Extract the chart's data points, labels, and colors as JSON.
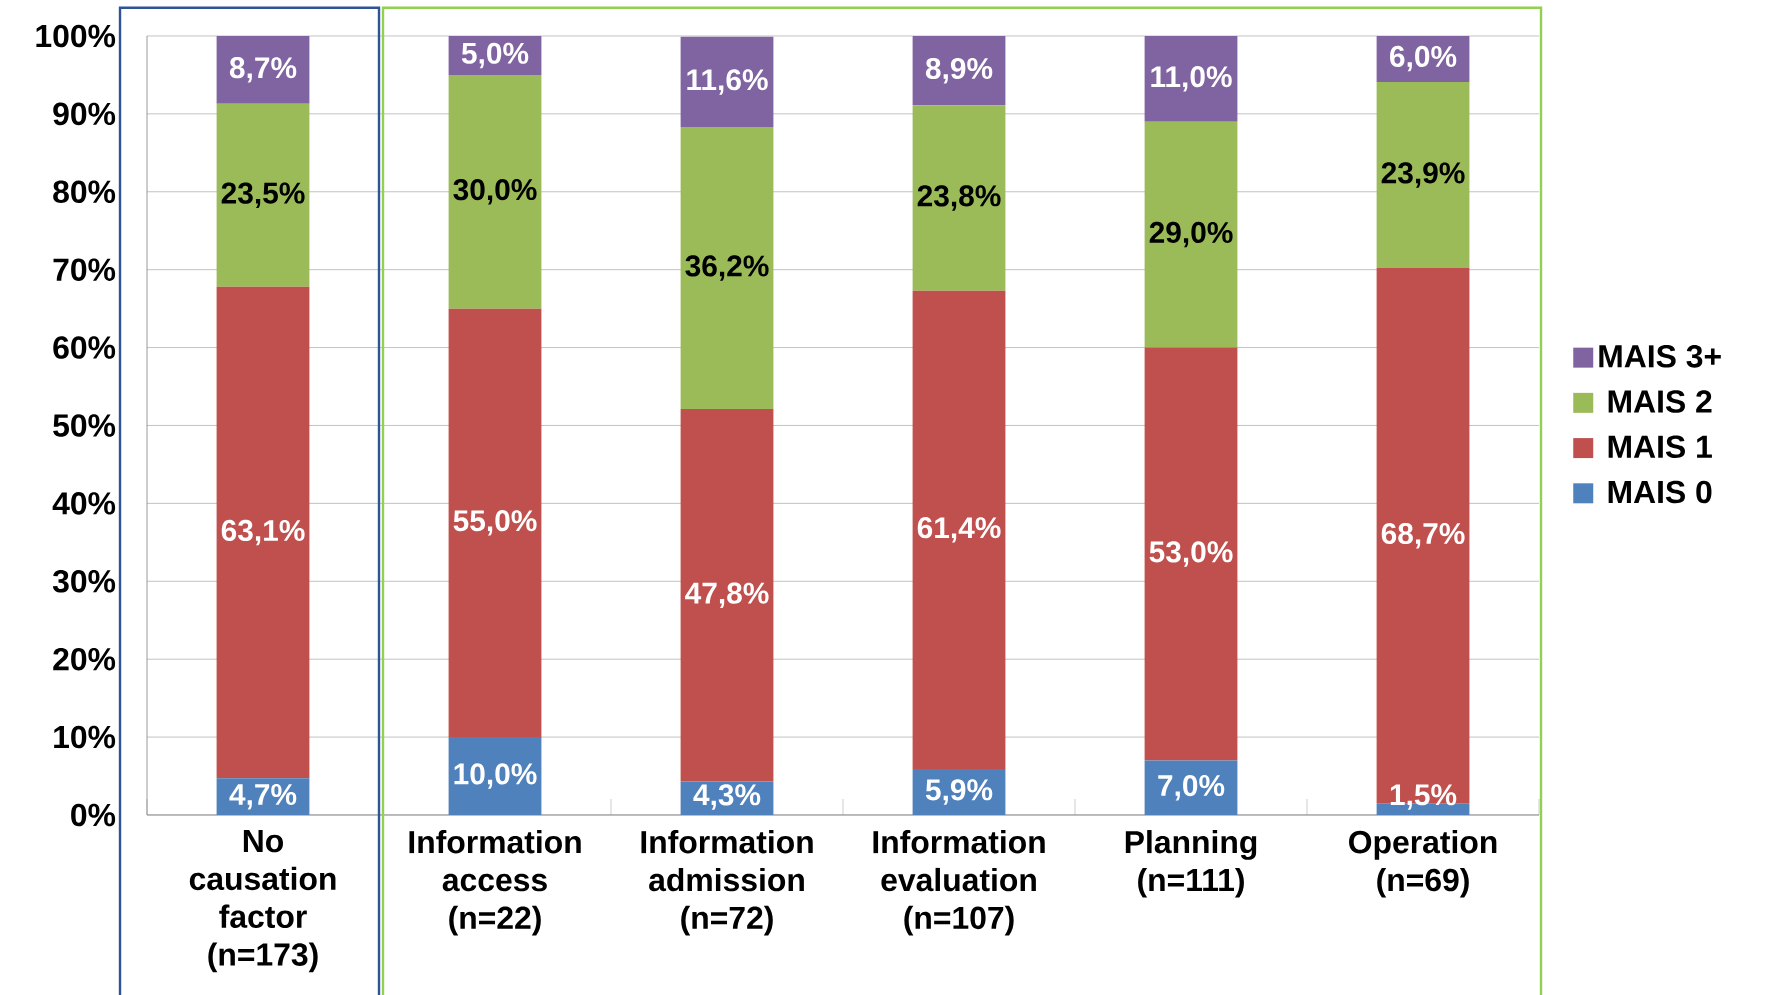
{
  "chart_data": {
    "type": "bar",
    "stacked": true,
    "categories": [
      "No causation factor (n=173)",
      "Information access (n=22)",
      "Information admission (n=72)",
      "Information evaluation (n=107)",
      "Planning (n=111)",
      "Operation (n=69)"
    ],
    "series": [
      {
        "name": "MAIS 0",
        "color": "#4f81bd",
        "values": [
          4.7,
          10.0,
          4.3,
          5.9,
          7.0,
          1.5
        ],
        "value_labels": [
          "4,7%",
          "10,0%",
          "4,3%",
          "5,9%",
          "7,0%",
          "1,5%"
        ]
      },
      {
        "name": "MAIS 1",
        "color": "#c0504d",
        "values": [
          63.1,
          55.0,
          47.8,
          61.4,
          53.0,
          68.7
        ],
        "value_labels": [
          "63,1%",
          "55,0%",
          "47,8%",
          "61,4%",
          "53,0%",
          "68,7%"
        ]
      },
      {
        "name": "MAIS 2",
        "color": "#9bbb59",
        "values": [
          23.5,
          30.0,
          36.2,
          23.8,
          29.0,
          23.9
        ],
        "value_labels": [
          "23,5%",
          "30,0%",
          "36,2%",
          "23,8%",
          "29,0%",
          "23,9%"
        ]
      },
      {
        "name": "MAIS 3+",
        "color": "#8064a2",
        "values": [
          8.7,
          5.0,
          11.6,
          8.9,
          11.0,
          6.0
        ],
        "value_labels": [
          "8,7%",
          "5,0%",
          "11,6%",
          "8,9%",
          "11,0%",
          "6,0%"
        ]
      }
    ],
    "ylim": [
      0,
      100
    ],
    "yticks": [
      {
        "value": 0,
        "label": "0%"
      },
      {
        "value": 10,
        "label": "10%"
      },
      {
        "value": 20,
        "label": "20%"
      },
      {
        "value": 30,
        "label": "30%"
      },
      {
        "value": 40,
        "label": "40%"
      },
      {
        "value": 50,
        "label": "50%"
      },
      {
        "value": 60,
        "label": "60%"
      },
      {
        "value": 70,
        "label": "70%"
      },
      {
        "value": 80,
        "label": "80%"
      },
      {
        "value": 90,
        "label": "90%"
      },
      {
        "value": 100,
        "label": "100%"
      }
    ],
    "grid": "y",
    "legend": "right"
  }
}
